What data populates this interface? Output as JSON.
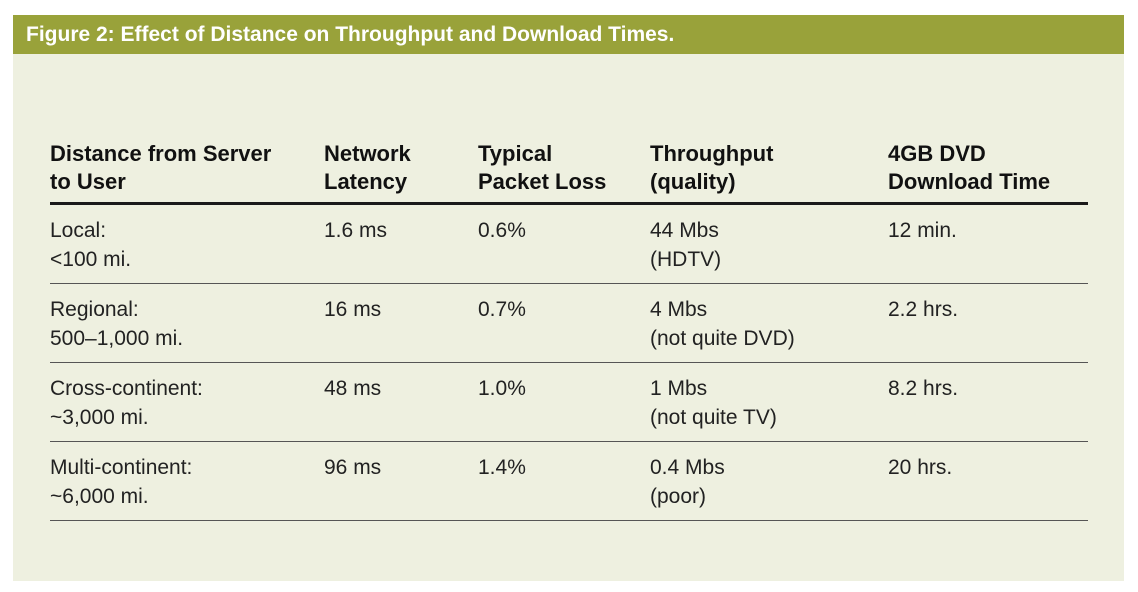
{
  "figure": {
    "title": "Figure 2: Effect of Distance on Throughput and Download Times."
  },
  "table": {
    "headers": [
      "Distance from Server\nto User",
      "Network\nLatency",
      "Typical\nPacket Loss",
      "Throughput\n(quality)",
      "4GB DVD\nDownload Time"
    ],
    "rows": [
      [
        "Local:\n<100 mi.",
        "1.6 ms",
        "0.6%",
        "44 Mbs\n(HDTV)",
        "12 min."
      ],
      [
        "Regional:\n500–1,000 mi.",
        "16 ms",
        "0.7%",
        "4 Mbs\n(not quite DVD)",
        "2.2 hrs."
      ],
      [
        "Cross-continent:\n~3,000 mi.",
        "48 ms",
        "1.0%",
        "1 Mbs\n(not quite TV)",
        "8.2 hrs."
      ],
      [
        "Multi-continent:\n~6,000 mi.",
        "96 ms",
        "1.4%",
        "0.4 Mbs\n(poor)",
        "20 hrs."
      ]
    ]
  },
  "colors": {
    "title_bar": "#99a23a",
    "panel_background": "#eef0e0"
  }
}
